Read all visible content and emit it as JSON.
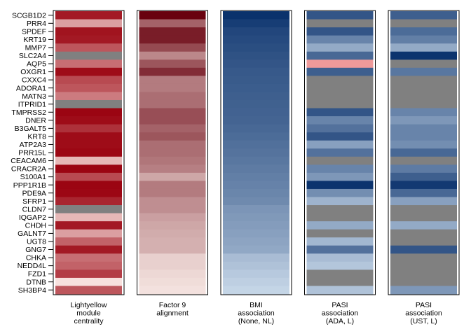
{
  "chart_data": {
    "type": "heatmap",
    "rows": [
      "SCGB1D2",
      "PRR4",
      "SPDEF",
      "KRT19",
      "MMP7",
      "SLC2A4",
      "AQP5",
      "OXGR1",
      "CXXC4",
      "ADORA1",
      "MATN3",
      "ITPRID1",
      "TMPRSS2",
      "DNER",
      "B3GALT5",
      "KRT8",
      "ATP2A3",
      "PRR15L",
      "CEACAM6",
      "CRACR2A",
      "S100A1",
      "PPP1R1B",
      "PDE9A",
      "SFRP1",
      "CLDN7",
      "IQGAP2",
      "CHDH",
      "GALNT7",
      "UGT8",
      "GNG7",
      "CHKA",
      "NEDD4L",
      "FZD1",
      "DTNB",
      "SH3BP4"
    ],
    "missing_color": "#808080",
    "columns": [
      {
        "label": [
          "Lightyellow",
          "module",
          "centrality"
        ],
        "palette": "reds",
        "low_color": "#FFF5F0",
        "high_color": "#99000D",
        "values": [
          0.9,
          0.35,
          0.92,
          0.9,
          0.65,
          null,
          0.55,
          0.95,
          0.7,
          0.65,
          0.5,
          null,
          0.98,
          0.95,
          0.8,
          0.95,
          0.95,
          0.97,
          0.25,
          0.98,
          0.7,
          0.98,
          0.97,
          0.85,
          null,
          0.25,
          0.9,
          0.35,
          0.6,
          0.9,
          0.55,
          0.6,
          0.75,
          0.08,
          0.65
        ]
      },
      {
        "label": [
          "Factor 9",
          "alignment"
        ],
        "palette": "reds",
        "low_color": "#FFF5F0",
        "high_color": "#67000D",
        "values": [
          0.99,
          0.6,
          0.88,
          0.88,
          0.7,
          0.45,
          0.65,
          0.82,
          0.5,
          0.5,
          0.55,
          0.55,
          0.68,
          0.68,
          0.6,
          0.65,
          0.55,
          0.55,
          0.52,
          0.48,
          0.32,
          0.5,
          0.5,
          0.42,
          0.42,
          0.35,
          0.32,
          0.3,
          0.28,
          0.28,
          0.15,
          0.15,
          0.12,
          0.1,
          0.08
        ]
      },
      {
        "label": [
          "BMI",
          "association",
          "(None, NL)"
        ],
        "palette": "blues",
        "low_color": "#DEEBF7",
        "high_color": "#08306B",
        "values": [
          0.99,
          0.93,
          0.88,
          0.86,
          0.84,
          0.82,
          0.8,
          0.78,
          0.77,
          0.76,
          0.75,
          0.74,
          0.73,
          0.72,
          0.7,
          0.68,
          0.66,
          0.64,
          0.62,
          0.6,
          0.58,
          0.56,
          0.54,
          0.52,
          0.46,
          0.44,
          0.42,
          0.4,
          0.38,
          0.36,
          0.25,
          0.22,
          0.18,
          0.15,
          0.12
        ]
      },
      {
        "label": [
          "PASI",
          "association",
          "(ADA, L)"
        ],
        "palette": "blues",
        "low_color": "#DEEBF7",
        "high_color": "#08306B",
        "negative_color": "#EF9A9A",
        "values": [
          0.8,
          null,
          0.8,
          0.55,
          0.35,
          0.7,
          "neg",
          0.75,
          null,
          null,
          null,
          null,
          0.8,
          0.55,
          0.65,
          0.8,
          0.4,
          0.65,
          null,
          0.55,
          0.45,
          0.98,
          0.5,
          0.3,
          null,
          null,
          0.35,
          null,
          0.28,
          0.65,
          0.25,
          0.2,
          null,
          null,
          0.22
        ]
      },
      {
        "label": [
          "PASI",
          "association",
          "(UST, L)"
        ],
        "palette": "blues",
        "low_color": "#DEEBF7",
        "high_color": "#08306B",
        "values": [
          0.75,
          null,
          0.68,
          0.58,
          0.35,
          0.98,
          null,
          0.62,
          null,
          null,
          null,
          null,
          0.55,
          0.45,
          0.55,
          0.55,
          0.5,
          0.7,
          null,
          0.6,
          0.75,
          0.95,
          0.7,
          0.4,
          null,
          null,
          0.35,
          null,
          null,
          0.8,
          null,
          null,
          null,
          null,
          0.45
        ]
      }
    ]
  }
}
